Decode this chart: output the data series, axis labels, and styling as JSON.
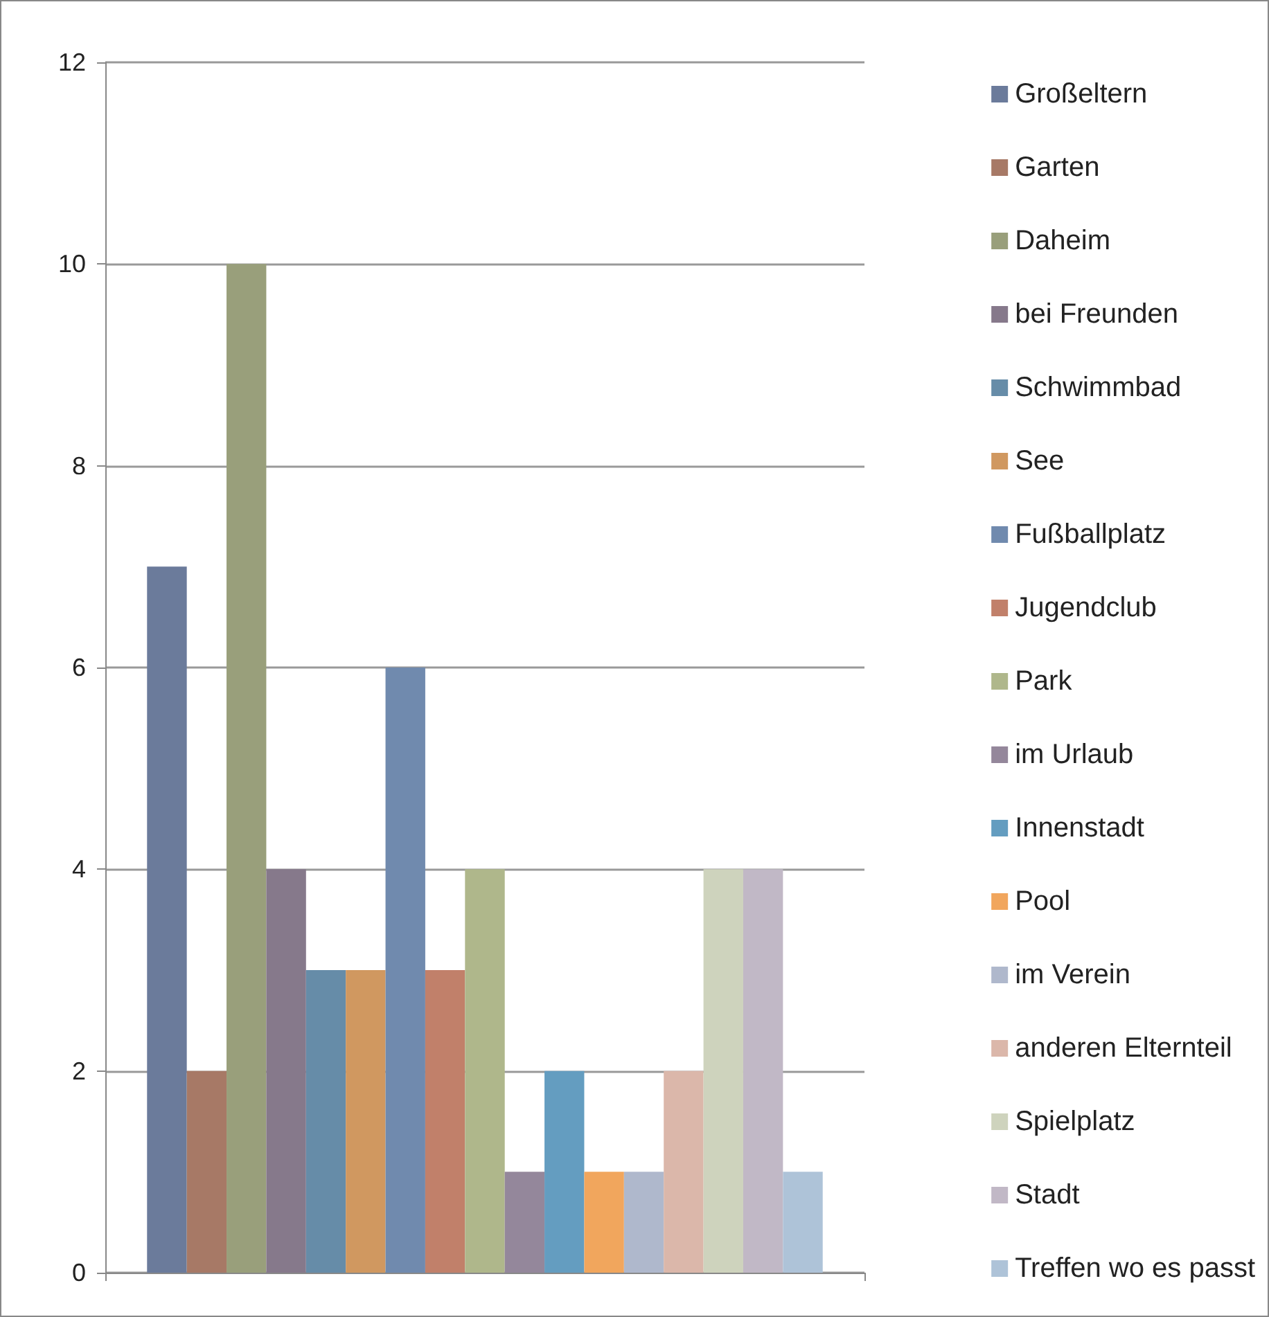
{
  "chart_data": {
    "type": "bar",
    "categories": [
      null
    ],
    "series": [
      {
        "name": "Großeltern",
        "color": "#6b7b9b",
        "values": [
          7
        ]
      },
      {
        "name": "Garten",
        "color": "#a77966",
        "values": [
          2
        ]
      },
      {
        "name": "Daheim",
        "color": "#999f7b",
        "values": [
          10
        ]
      },
      {
        "name": "bei Freunden",
        "color": "#86798b",
        "values": [
          4
        ]
      },
      {
        "name": "Schwimmbad",
        "color": "#668ca8",
        "values": [
          3
        ]
      },
      {
        "name": "See",
        "color": "#d09860",
        "values": [
          3
        ]
      },
      {
        "name": "Fußballplatz",
        "color": "#708aae",
        "values": [
          6
        ]
      },
      {
        "name": "Jugendclub",
        "color": "#c1806a",
        "values": [
          3
        ]
      },
      {
        "name": "Park",
        "color": "#afb78b",
        "values": [
          4
        ]
      },
      {
        "name": "im Urlaub",
        "color": "#94879b",
        "values": [
          1
        ]
      },
      {
        "name": "Innenstadt",
        "color": "#649dc0",
        "values": [
          2
        ]
      },
      {
        "name": "Pool",
        "color": "#f1a65d",
        "values": [
          1
        ]
      },
      {
        "name": "im Verein",
        "color": "#afb8cc",
        "values": [
          1
        ]
      },
      {
        "name": "anderen Elternteil",
        "color": "#dbb7aa",
        "values": [
          2
        ]
      },
      {
        "name": "Spielplatz",
        "color": "#ced3bd",
        "values": [
          4
        ]
      },
      {
        "name": "Stadt",
        "color": "#c1b8c6",
        "values": [
          4
        ]
      },
      {
        "name": "Treffen wo es passt",
        "color": "#aec3d8",
        "values": [
          1
        ]
      }
    ],
    "ylim": [
      0,
      12
    ],
    "yticks": [
      0,
      2,
      4,
      6,
      8,
      10,
      12
    ],
    "grid": "y",
    "legend": "right"
  }
}
